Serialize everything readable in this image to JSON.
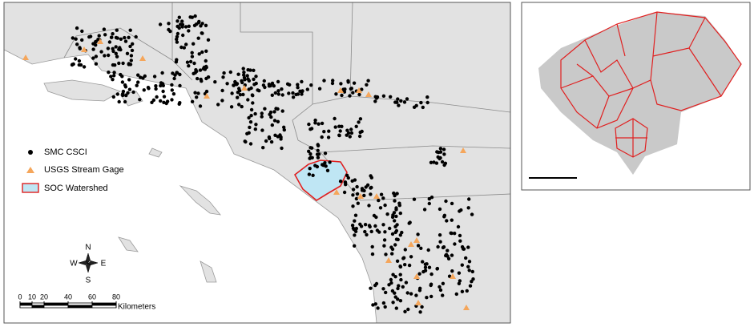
{
  "legend": {
    "items": [
      {
        "label": "SMC CSCI"
      },
      {
        "label": "USGS Stream Gage"
      },
      {
        "label": "SOC Watershed"
      }
    ]
  },
  "compass": {
    "n": "N",
    "e": "E",
    "s": "S",
    "w": "W"
  },
  "scale_bar": {
    "ticks": [
      0,
      10,
      20,
      40,
      60,
      80
    ],
    "unit": "Kilometers"
  }
}
